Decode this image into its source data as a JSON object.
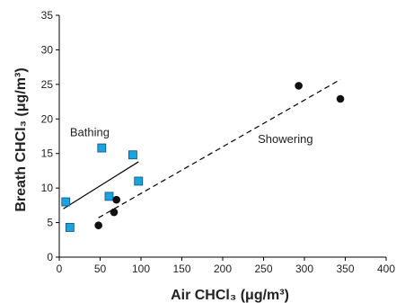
{
  "chart_data": {
    "type": "scatter",
    "xlabel": "Air CHCl₃ (μg/m³)",
    "ylabel": "Breath CHCl₃ (μg/m³)",
    "xlim": [
      0,
      400
    ],
    "ylim": [
      0,
      35
    ],
    "x_ticks": [
      "0",
      "50",
      "100",
      "150",
      "200",
      "250",
      "300",
      "350",
      "400"
    ],
    "y_ticks": [
      "0",
      "5",
      "10",
      "15",
      "20",
      "25",
      "30",
      "35"
    ],
    "grid": false,
    "annotations": [
      {
        "text": "Bathing",
        "x": 13,
        "y": 17.5
      },
      {
        "text": "Showering",
        "x": 243,
        "y": 16.5
      }
    ],
    "series": [
      {
        "name": "Bathing",
        "marker": "square",
        "color": "#1aa3e0",
        "points": [
          {
            "x": 8,
            "y": 8
          },
          {
            "x": 13,
            "y": 4.3
          },
          {
            "x": 52,
            "y": 15.8
          },
          {
            "x": 61,
            "y": 8.8
          },
          {
            "x": 90,
            "y": 14.8
          },
          {
            "x": 97,
            "y": 11
          }
        ],
        "fit": {
          "style": "solid",
          "x": [
            5,
            97
          ],
          "y": [
            7,
            13.8
          ]
        }
      },
      {
        "name": "Showering",
        "marker": "circle",
        "color": "#111111",
        "points": [
          {
            "x": 48,
            "y": 4.6
          },
          {
            "x": 67,
            "y": 6.5
          },
          {
            "x": 70,
            "y": 8.3
          },
          {
            "x": 293,
            "y": 24.8
          },
          {
            "x": 344,
            "y": 22.9
          }
        ],
        "fit": {
          "style": "dashed",
          "x": [
            48,
            344
          ],
          "y": [
            5.7,
            25.7
          ]
        }
      }
    ]
  }
}
